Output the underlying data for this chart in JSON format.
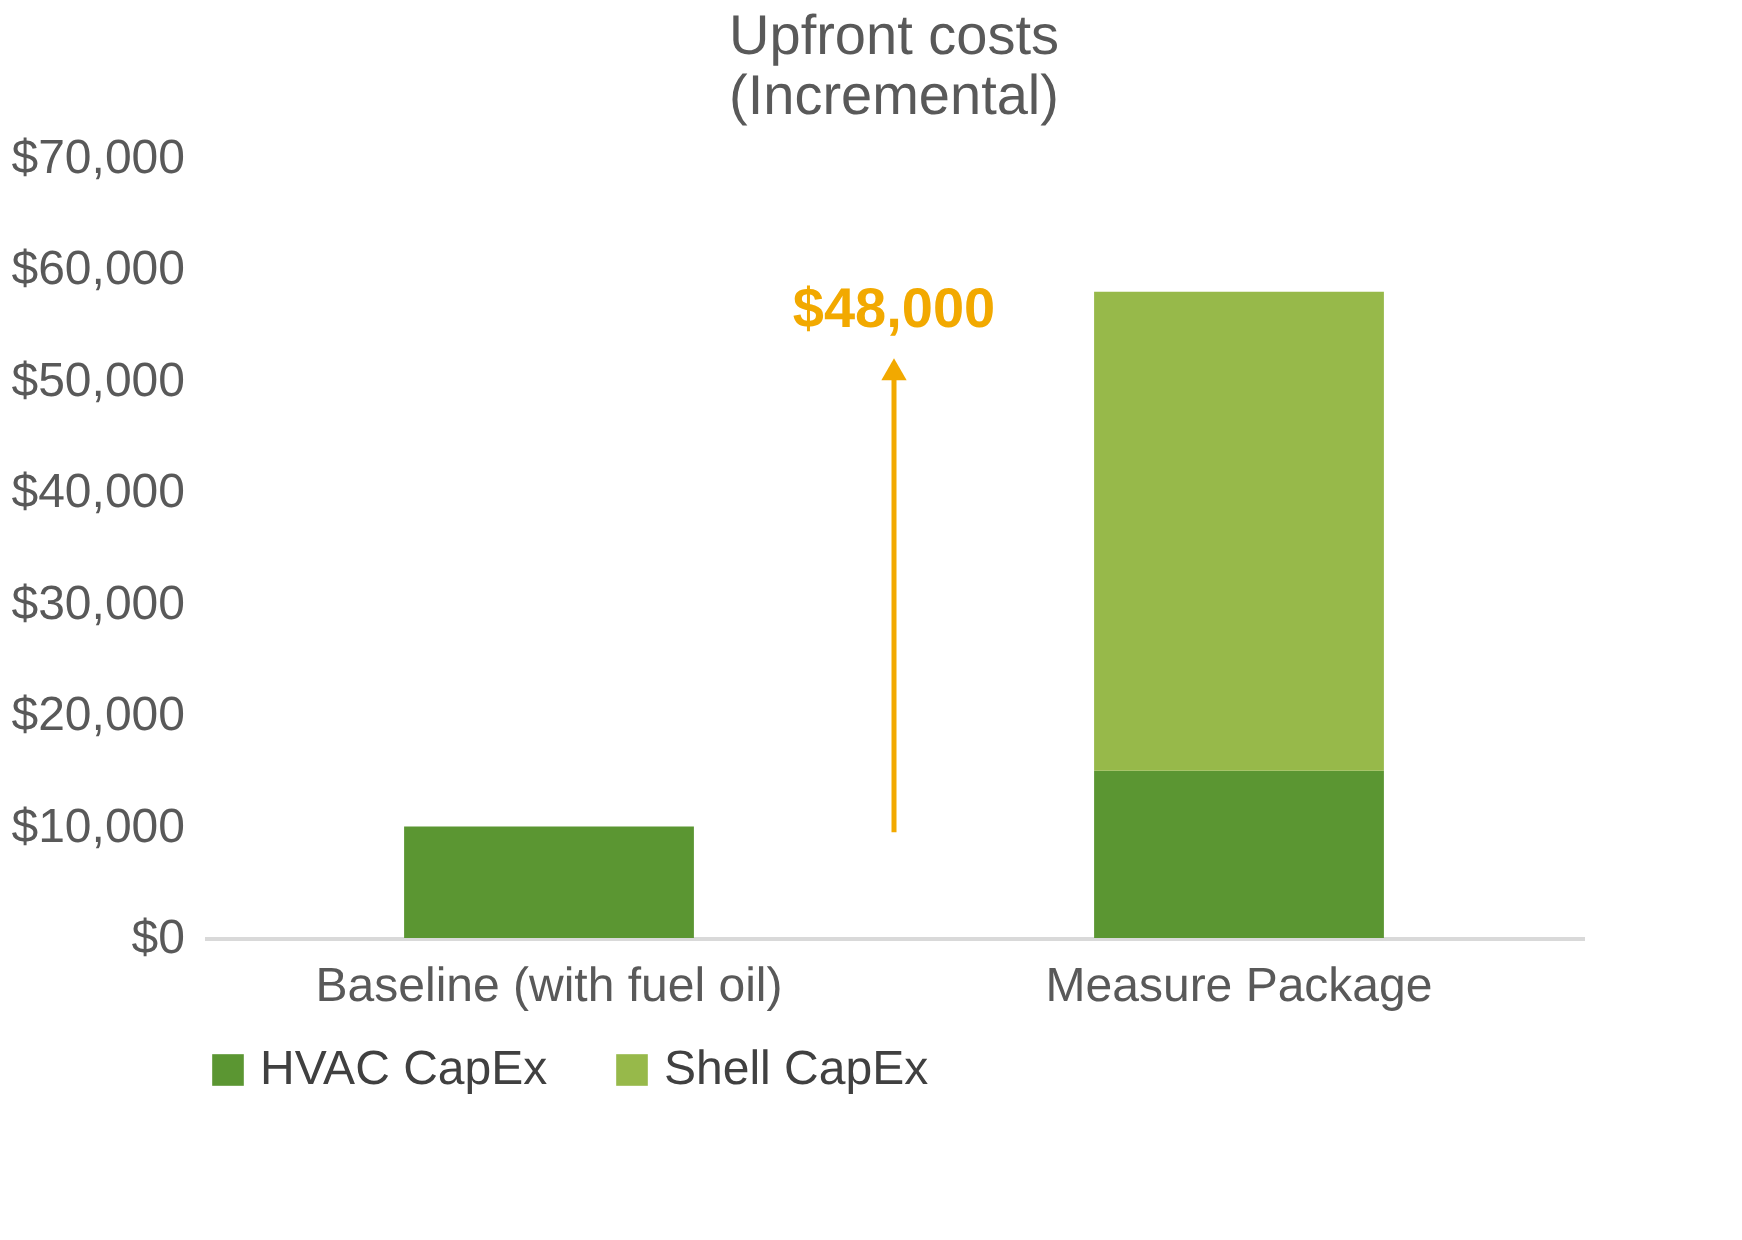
{
  "chart_data": {
    "type": "bar",
    "title": "Upfront costs\n(Incremental)",
    "categories": [
      "Baseline (with fuel oil)",
      "Measure Package"
    ],
    "stacked": true,
    "series": [
      {
        "name": "HVAC CapEx",
        "color": "#5b9632",
        "values": [
          10000,
          15000
        ]
      },
      {
        "name": "Shell CapEx",
        "color": "#97b94a",
        "values": [
          null,
          43000
        ]
      }
    ],
    "ylim": [
      0,
      70000
    ],
    "yticks": [
      {
        "value": 0,
        "label": "$0"
      },
      {
        "value": 10000,
        "label": "$10,000"
      },
      {
        "value": 20000,
        "label": "$20,000"
      },
      {
        "value": 30000,
        "label": "$30,000"
      },
      {
        "value": 40000,
        "label": "$40,000"
      },
      {
        "value": 50000,
        "label": "$50,000"
      },
      {
        "value": 60000,
        "label": "$60,000"
      },
      {
        "value": 70000,
        "label": "$70,000"
      }
    ],
    "annotations": [
      "$48,000"
    ],
    "grid": false,
    "legend": "bottom"
  }
}
